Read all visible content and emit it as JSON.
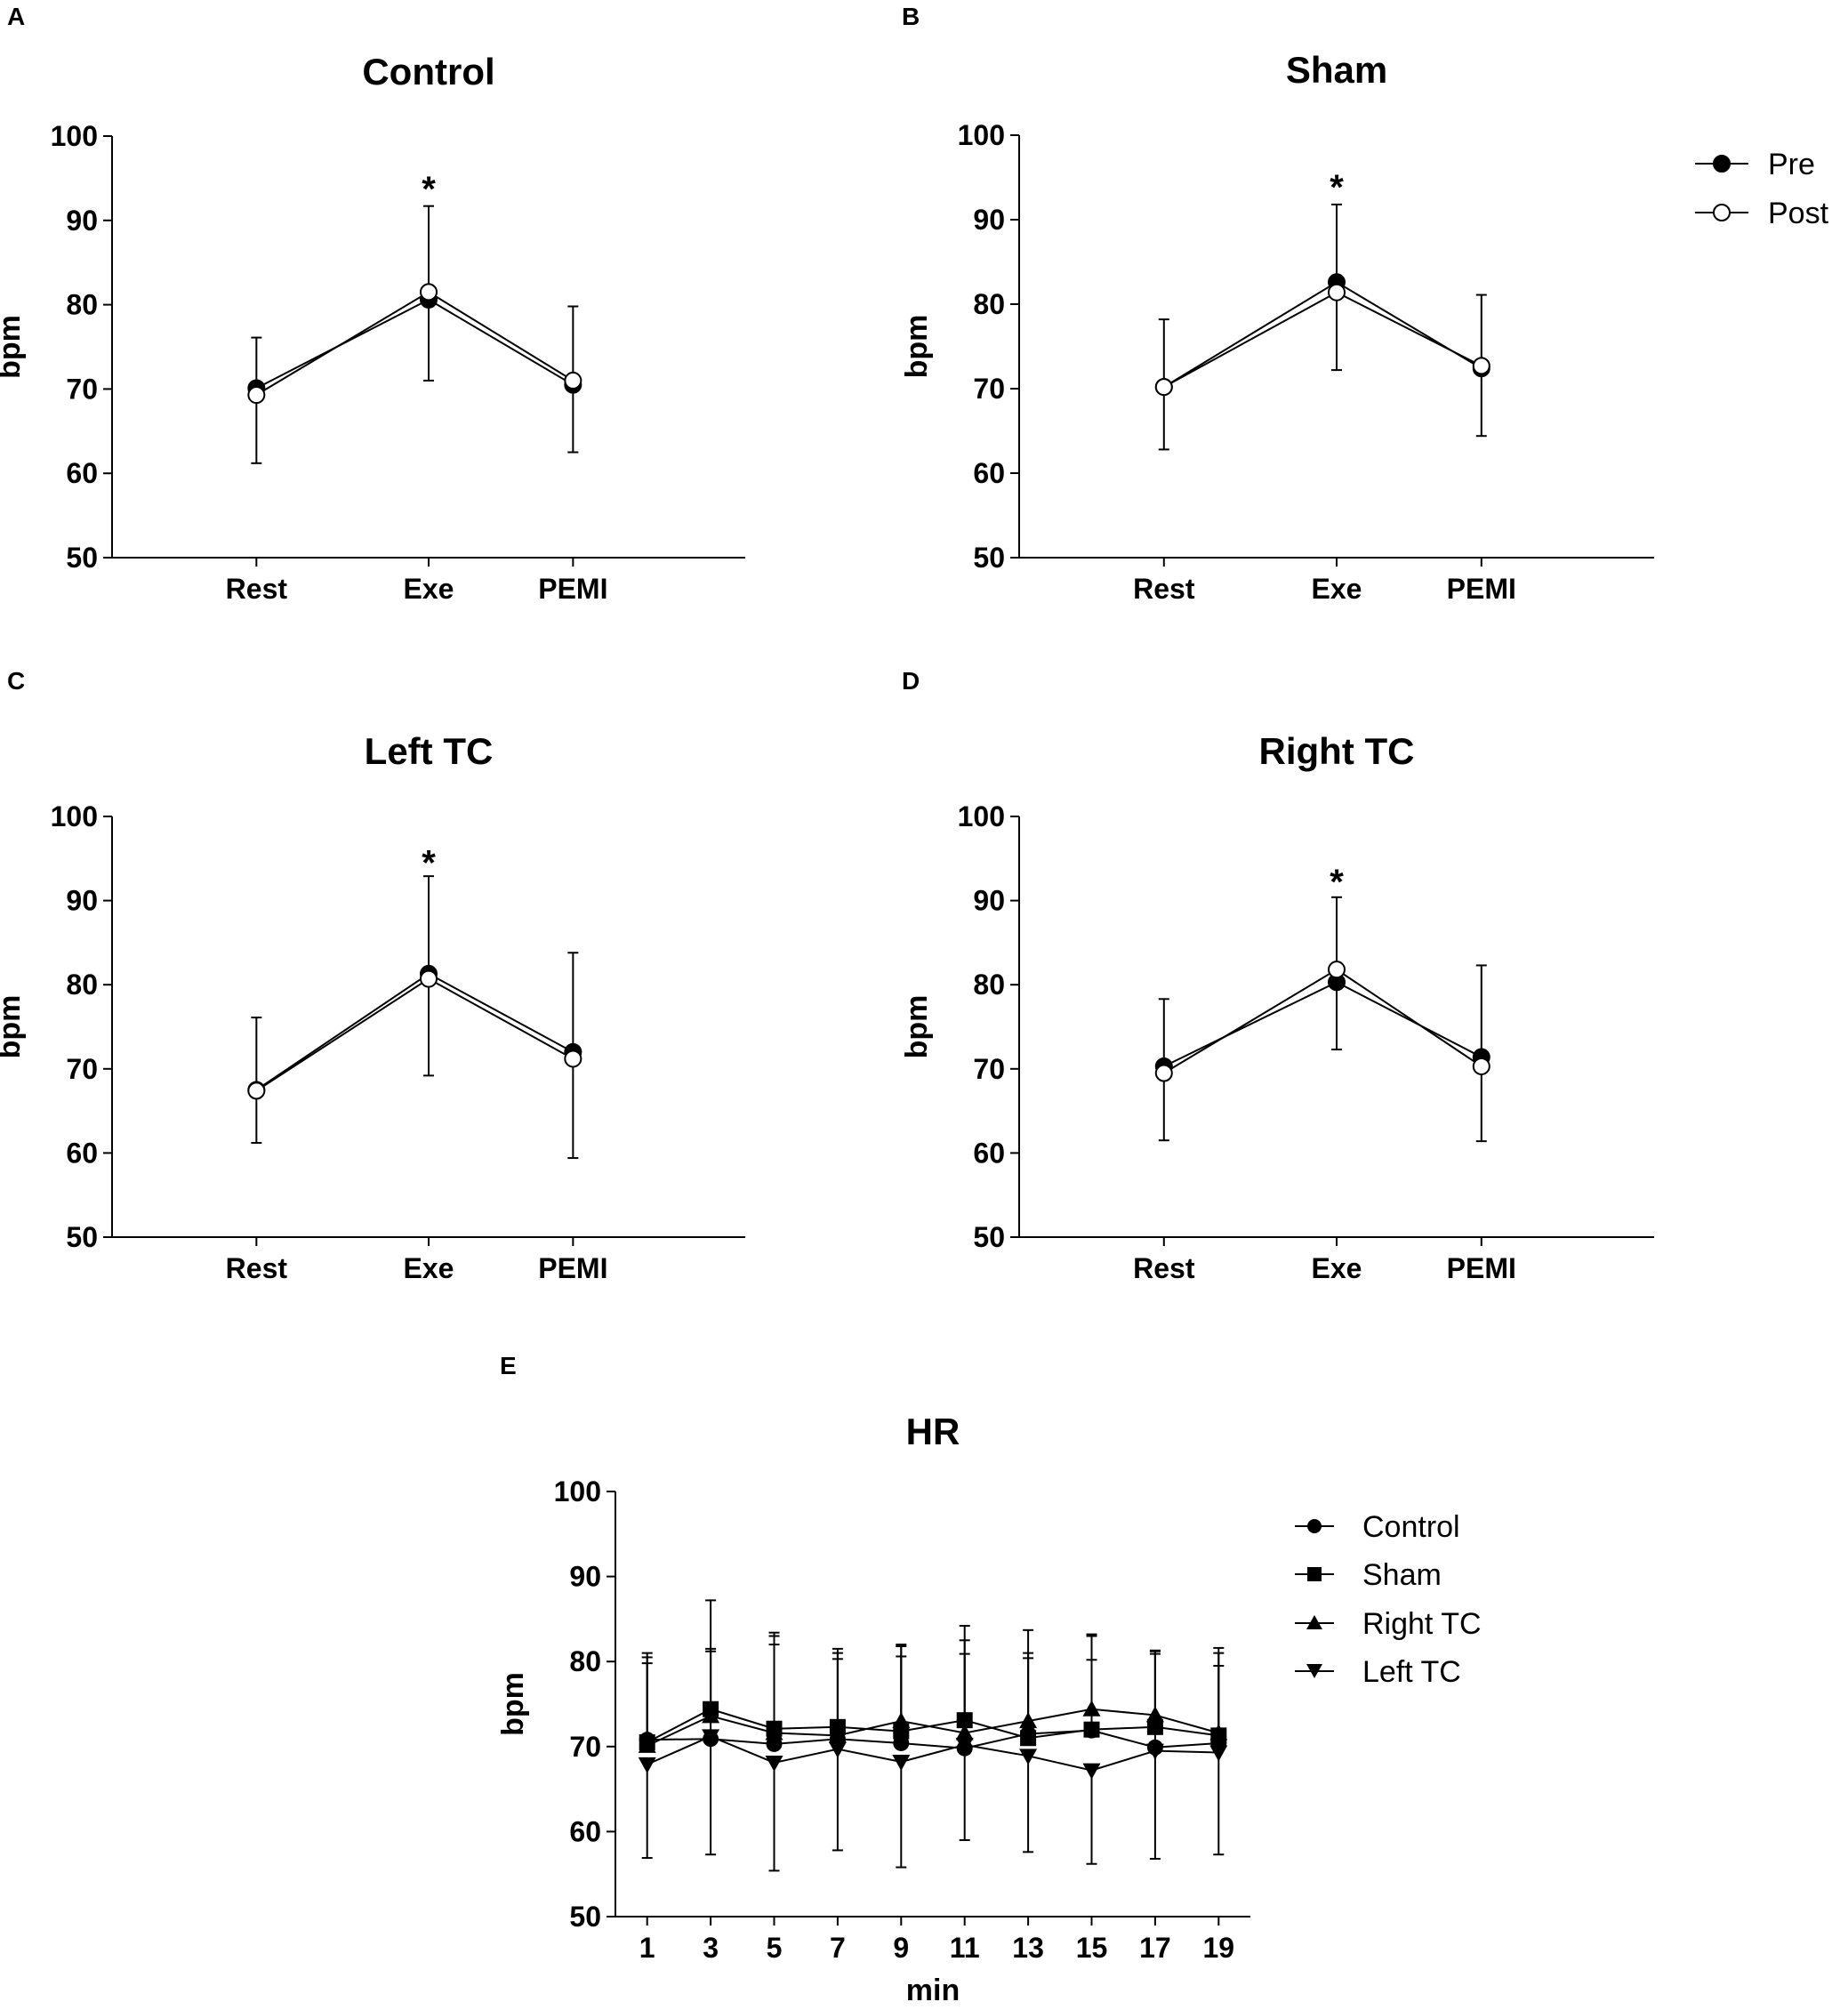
{
  "legends": {
    "prepost": [
      {
        "label": "Pre",
        "marker": "filled-circle"
      },
      {
        "label": "Post",
        "marker": "open-circle"
      }
    ],
    "groups": [
      {
        "label": "Control",
        "marker": "circle"
      },
      {
        "label": "Sham",
        "marker": "square"
      },
      {
        "label": "Right TC",
        "marker": "triangle-up"
      },
      {
        "label": "Left TC",
        "marker": "triangle-down"
      }
    ]
  },
  "colors": {
    "ink": "#000000",
    "background": "#ffffff"
  },
  "chart_data": [
    {
      "panel": "A",
      "type": "line",
      "title": "Control",
      "xlabel": "",
      "ylabel": "bpm",
      "categories": [
        "Rest",
        "Exe",
        "PEMI"
      ],
      "ylim": [
        50,
        100
      ],
      "yticks": [
        50,
        60,
        70,
        80,
        90,
        100
      ],
      "series": [
        {
          "name": "Pre",
          "values": [
            70.1,
            80.6,
            70.5
          ]
        },
        {
          "name": "Post",
          "values": [
            69.3,
            81.5,
            71.0
          ]
        }
      ],
      "error_up": [
        76.1,
        91.7,
        79.8
      ],
      "error_down": [
        61.2,
        71.0,
        62.5
      ],
      "annotation": {
        "text": "*",
        "category": "Exe",
        "y": 94.2
      }
    },
    {
      "panel": "B",
      "type": "line",
      "title": "Sham",
      "xlabel": "",
      "ylabel": "bpm",
      "categories": [
        "Rest",
        "Exe",
        "PEMI"
      ],
      "ylim": [
        50,
        100
      ],
      "yticks": [
        50,
        60,
        70,
        80,
        90,
        100
      ],
      "series": [
        {
          "name": "Pre",
          "values": [
            70.2,
            82.6,
            72.4
          ]
        },
        {
          "name": "Post",
          "values": [
            70.2,
            81.4,
            72.7
          ]
        }
      ],
      "error_up": [
        78.2,
        91.8,
        81.1
      ],
      "error_down": [
        62.8,
        72.2,
        64.4
      ],
      "annotation": {
        "text": "*",
        "category": "Exe",
        "y": 94.3
      }
    },
    {
      "panel": "C",
      "type": "line",
      "title": "Left TC",
      "xlabel": "",
      "ylabel": "bpm",
      "categories": [
        "Rest",
        "Exe",
        "PEMI"
      ],
      "ylim": [
        50,
        100
      ],
      "yticks": [
        50,
        60,
        70,
        80,
        90,
        100
      ],
      "series": [
        {
          "name": "Pre",
          "values": [
            67.5,
            81.3,
            72.0
          ]
        },
        {
          "name": "Post",
          "values": [
            67.4,
            80.7,
            71.2
          ]
        }
      ],
      "error_up": [
        76.1,
        92.9,
        83.8
      ],
      "error_down": [
        61.2,
        69.2,
        59.4
      ],
      "annotation": {
        "text": "*",
        "category": "Exe",
        "y": 95.0
      }
    },
    {
      "panel": "D",
      "type": "line",
      "title": "Right TC",
      "xlabel": "",
      "ylabel": "bpm",
      "categories": [
        "Rest",
        "Exe",
        "PEMI"
      ],
      "ylim": [
        50,
        100
      ],
      "yticks": [
        50,
        60,
        70,
        80,
        90,
        100
      ],
      "series": [
        {
          "name": "Pre",
          "values": [
            70.3,
            80.3,
            71.4
          ]
        },
        {
          "name": "Post",
          "values": [
            69.5,
            81.8,
            70.3
          ]
        }
      ],
      "error_up": [
        78.3,
        90.4,
        82.3
      ],
      "error_down": [
        61.5,
        72.3,
        61.4
      ],
      "annotation": {
        "text": "*",
        "category": "Exe",
        "y": 92.7
      }
    },
    {
      "panel": "E",
      "type": "line",
      "title": "HR",
      "xlabel": "min",
      "ylabel": "bpm",
      "x": [
        1,
        3,
        5,
        7,
        9,
        11,
        13,
        15,
        17,
        19
      ],
      "ylim": [
        50,
        100
      ],
      "yticks": [
        50,
        60,
        70,
        80,
        90,
        100
      ],
      "series": [
        {
          "name": "Control",
          "values": [
            70.8,
            70.9,
            70.3,
            70.9,
            70.4,
            69.8,
            71.5,
            71.9,
            69.9,
            70.4
          ],
          "error_up": [
            80.5,
            81.2,
            82.0,
            80.3,
            80.6,
            80.9,
            80.4,
            80.2,
            80.9,
            79.5
          ]
        },
        {
          "name": "Sham",
          "values": [
            70.5,
            74.4,
            72.1,
            72.3,
            71.8,
            73.1,
            71.0,
            72.0,
            72.3,
            71.3
          ],
          "error_up": [
            81.0,
            87.2,
            83.4,
            81.5,
            82.0,
            84.2,
            83.7,
            83.2,
            81.3,
            81.6
          ]
        },
        {
          "name": "Right TC",
          "values": [
            70.1,
            73.6,
            71.6,
            71.3,
            73.0,
            71.6,
            73.0,
            74.4,
            73.7,
            71.6
          ],
          "error_up": [
            79.8,
            81.5,
            83.0,
            81.0,
            81.8,
            82.5,
            81.0,
            83.0,
            81.2,
            81.0
          ]
        },
        {
          "name": "Left TC",
          "values": [
            67.9,
            71.2,
            68.1,
            69.7,
            68.2,
            70.2,
            68.9,
            67.2,
            69.5,
            69.3
          ],
          "error_down": [
            56.9,
            57.3,
            55.4,
            57.8,
            55.8,
            59.0,
            57.6,
            56.2,
            56.8,
            57.3
          ]
        }
      ]
    }
  ]
}
